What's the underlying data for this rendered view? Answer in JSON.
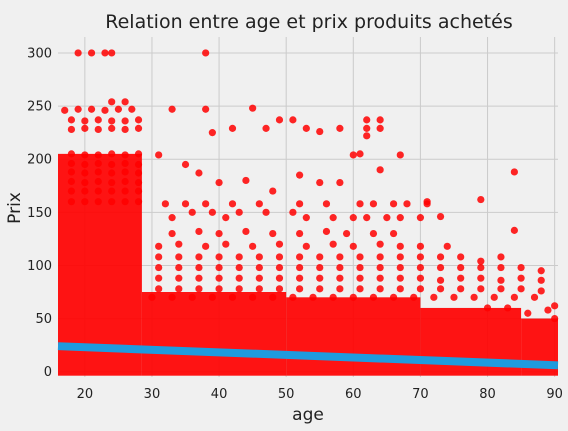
{
  "chart_data": {
    "type": "scatter",
    "title": "Relation entre age et prix produits achetés",
    "xlabel": "age",
    "ylabel": "Prix",
    "xlim": [
      16,
      90.5
    ],
    "ylim": [
      -5,
      315
    ],
    "x_ticks": [
      20,
      30,
      40,
      50,
      60,
      70,
      80,
      90
    ],
    "y_ticks": [
      0,
      50,
      100,
      150,
      200,
      250,
      300
    ],
    "grid": true,
    "background": "#f0f0f0",
    "point_color": "#ff0000",
    "regression_color": "#1f9bde",
    "series": [
      {
        "points": [
          [
            19,
            300
          ],
          [
            21,
            300
          ],
          [
            23,
            300
          ],
          [
            24,
            300
          ],
          [
            38,
            300
          ],
          [
            24,
            254
          ],
          [
            26,
            254
          ],
          [
            17,
            246
          ],
          [
            19,
            247
          ],
          [
            21,
            247
          ],
          [
            23,
            246
          ],
          [
            25,
            247
          ],
          [
            27,
            247
          ],
          [
            18,
            237
          ],
          [
            20,
            236
          ],
          [
            22,
            237
          ],
          [
            24,
            236
          ],
          [
            26,
            236
          ],
          [
            28,
            237
          ],
          [
            18,
            228
          ],
          [
            20,
            229
          ],
          [
            22,
            228
          ],
          [
            24,
            229
          ],
          [
            26,
            228
          ],
          [
            28,
            229
          ],
          [
            33,
            247
          ],
          [
            38,
            247
          ],
          [
            45,
            248
          ],
          [
            49,
            237
          ],
          [
            51,
            237
          ],
          [
            53,
            229
          ],
          [
            55,
            226
          ],
          [
            58,
            229
          ],
          [
            62,
            237
          ],
          [
            64,
            237
          ],
          [
            62,
            229
          ],
          [
            64,
            229
          ],
          [
            62,
            222
          ],
          [
            39,
            225
          ],
          [
            42,
            229
          ],
          [
            47,
            229
          ],
          [
            18,
            205
          ],
          [
            20,
            204
          ],
          [
            22,
            204
          ],
          [
            24,
            205
          ],
          [
            26,
            204
          ],
          [
            28,
            205
          ],
          [
            18,
            196
          ],
          [
            20,
            195
          ],
          [
            22,
            196
          ],
          [
            24,
            195
          ],
          [
            26,
            196
          ],
          [
            28,
            195
          ],
          [
            18,
            188
          ],
          [
            20,
            187
          ],
          [
            22,
            188
          ],
          [
            24,
            187
          ],
          [
            26,
            188
          ],
          [
            28,
            187
          ],
          [
            18,
            179
          ],
          [
            20,
            178
          ],
          [
            22,
            179
          ],
          [
            24,
            178
          ],
          [
            26,
            179
          ],
          [
            28,
            178
          ],
          [
            18,
            170
          ],
          [
            20,
            170
          ],
          [
            22,
            170
          ],
          [
            24,
            170
          ],
          [
            26,
            170
          ],
          [
            28,
            170
          ],
          [
            31,
            204
          ],
          [
            35,
            195
          ],
          [
            37,
            187
          ],
          [
            40,
            178
          ],
          [
            44,
            180
          ],
          [
            48,
            170
          ],
          [
            52,
            185
          ],
          [
            55,
            178
          ],
          [
            60,
            204
          ],
          [
            61,
            205
          ],
          [
            64,
            190
          ],
          [
            67,
            204
          ],
          [
            58,
            178
          ],
          [
            71,
            160
          ],
          [
            73,
            146
          ],
          [
            79,
            162
          ],
          [
            84,
            188
          ],
          [
            84,
            133
          ],
          [
            18,
            160
          ],
          [
            20,
            160
          ],
          [
            22,
            160
          ],
          [
            24,
            160
          ],
          [
            26,
            160
          ],
          [
            28,
            160
          ],
          [
            32,
            158
          ],
          [
            35,
            158
          ],
          [
            38,
            158
          ],
          [
            42,
            158
          ],
          [
            46,
            158
          ],
          [
            52,
            158
          ],
          [
            56,
            158
          ],
          [
            61,
            158
          ],
          [
            63,
            158
          ],
          [
            66,
            158
          ],
          [
            68,
            158
          ],
          [
            71,
            158
          ],
          [
            33,
            145
          ],
          [
            36,
            150
          ],
          [
            39,
            150
          ],
          [
            41,
            145
          ],
          [
            43,
            150
          ],
          [
            47,
            150
          ],
          [
            51,
            150
          ],
          [
            53,
            145
          ],
          [
            57,
            145
          ],
          [
            60,
            145
          ],
          [
            62,
            145
          ],
          [
            65,
            145
          ],
          [
            67,
            145
          ],
          [
            70,
            145
          ],
          [
            33,
            130
          ],
          [
            37,
            132
          ],
          [
            40,
            130
          ],
          [
            44,
            132
          ],
          [
            48,
            130
          ],
          [
            52,
            130
          ],
          [
            56,
            132
          ],
          [
            59,
            130
          ],
          [
            63,
            130
          ],
          [
            66,
            130
          ],
          [
            31,
            118
          ],
          [
            34,
            120
          ],
          [
            38,
            118
          ],
          [
            41,
            120
          ],
          [
            45,
            118
          ],
          [
            49,
            120
          ],
          [
            53,
            118
          ],
          [
            57,
            120
          ],
          [
            60,
            118
          ],
          [
            64,
            120
          ],
          [
            67,
            118
          ],
          [
            70,
            118
          ],
          [
            74,
            118
          ],
          [
            31,
            108
          ],
          [
            34,
            108
          ],
          [
            37,
            108
          ],
          [
            40,
            108
          ],
          [
            43,
            108
          ],
          [
            46,
            108
          ],
          [
            49,
            108
          ],
          [
            52,
            108
          ],
          [
            55,
            108
          ],
          [
            58,
            108
          ],
          [
            61,
            108
          ],
          [
            64,
            108
          ],
          [
            67,
            108
          ],
          [
            70,
            108
          ],
          [
            73,
            108
          ],
          [
            76,
            108
          ],
          [
            79,
            104
          ],
          [
            82,
            108
          ],
          [
            31,
            98
          ],
          [
            34,
            98
          ],
          [
            37,
            98
          ],
          [
            40,
            98
          ],
          [
            43,
            98
          ],
          [
            46,
            98
          ],
          [
            49,
            98
          ],
          [
            52,
            98
          ],
          [
            55,
            98
          ],
          [
            58,
            98
          ],
          [
            61,
            98
          ],
          [
            64,
            98
          ],
          [
            67,
            98
          ],
          [
            70,
            98
          ],
          [
            73,
            98
          ],
          [
            76,
            98
          ],
          [
            79,
            98
          ],
          [
            82,
            98
          ],
          [
            85,
            98
          ],
          [
            88,
            95
          ],
          [
            31,
            88
          ],
          [
            34,
            88
          ],
          [
            37,
            88
          ],
          [
            40,
            88
          ],
          [
            43,
            88
          ],
          [
            46,
            88
          ],
          [
            49,
            88
          ],
          [
            52,
            88
          ],
          [
            55,
            88
          ],
          [
            58,
            88
          ],
          [
            61,
            88
          ],
          [
            64,
            88
          ],
          [
            67,
            88
          ],
          [
            70,
            88
          ],
          [
            73,
            86
          ],
          [
            76,
            88
          ],
          [
            79,
            88
          ],
          [
            82,
            86
          ],
          [
            85,
            88
          ],
          [
            88,
            86
          ],
          [
            31,
            78
          ],
          [
            34,
            78
          ],
          [
            37,
            78
          ],
          [
            40,
            78
          ],
          [
            43,
            78
          ],
          [
            46,
            78
          ],
          [
            49,
            78
          ],
          [
            52,
            78
          ],
          [
            55,
            78
          ],
          [
            58,
            78
          ],
          [
            61,
            78
          ],
          [
            64,
            78
          ],
          [
            67,
            78
          ],
          [
            70,
            78
          ],
          [
            73,
            78
          ],
          [
            76,
            78
          ],
          [
            79,
            78
          ],
          [
            82,
            78
          ],
          [
            85,
            78
          ],
          [
            88,
            76
          ],
          [
            30,
            70
          ],
          [
            33,
            70
          ],
          [
            36,
            70
          ],
          [
            39,
            70
          ],
          [
            42,
            70
          ],
          [
            45,
            70
          ],
          [
            48,
            70
          ],
          [
            51,
            70
          ],
          [
            54,
            70
          ],
          [
            57,
            70
          ],
          [
            60,
            70
          ],
          [
            63,
            70
          ],
          [
            66,
            70
          ],
          [
            69,
            70
          ],
          [
            72,
            70
          ],
          [
            75,
            70
          ],
          [
            78,
            70
          ],
          [
            81,
            70
          ],
          [
            84,
            70
          ],
          [
            87,
            70
          ],
          [
            90,
            62
          ],
          [
            80,
            60
          ],
          [
            83,
            60
          ],
          [
            86,
            55
          ],
          [
            89,
            58
          ],
          [
            90,
            50
          ]
        ]
      }
    ],
    "dense_band": {
      "x_segments": [
        [
          16,
          28.5,
          0,
          205
        ],
        [
          28.5,
          50,
          0,
          75
        ],
        [
          50,
          70,
          0,
          70
        ],
        [
          70,
          85,
          0,
          60
        ],
        [
          85,
          90.5,
          0,
          50
        ]
      ]
    },
    "regression_line": {
      "x": [
        16,
        90.5
      ],
      "y": [
        24,
        6
      ]
    }
  }
}
